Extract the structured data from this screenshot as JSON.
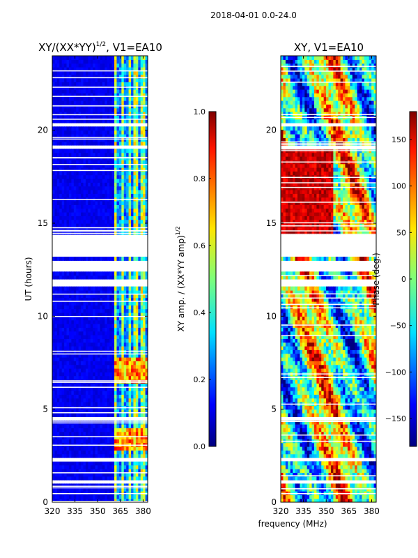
{
  "figure_title": "2018-04-01 0.0-24.0",
  "xlabel": "frequency (MHz)",
  "chart_data": [
    {
      "type": "heatmap",
      "title_base": "XY/(XX*YY)",
      "title_sup": "1/2",
      "title_tail": ", V1=EA10",
      "xlim": [
        320,
        383
      ],
      "ylim": [
        0,
        24
      ],
      "xticks": [
        320,
        335,
        350,
        365,
        380
      ],
      "yticks": [
        0,
        5,
        10,
        15,
        20
      ],
      "ylabel": "UT (hours)",
      "colorbar": {
        "label_base": "XY amp. / (XX*YY amp)",
        "label_sup": "1/2",
        "range": [
          0.0,
          1.0
        ],
        "ticks": [
          "0.0",
          "0.2",
          "0.4",
          "0.6",
          "0.8",
          "1.0"
        ],
        "tick_values": [
          0.0,
          0.2,
          0.4,
          0.6,
          0.8,
          1.0
        ]
      }
    },
    {
      "type": "heatmap",
      "title": "XY, V1=EA10",
      "xlim": [
        320,
        383
      ],
      "ylim": [
        0,
        24
      ],
      "xticks": [
        320,
        335,
        350,
        365,
        380
      ],
      "yticks": [
        0,
        5,
        10,
        15,
        20
      ],
      "colorbar": {
        "label": "Phase (deg.)",
        "range": [
          -180,
          180
        ],
        "ticks": [
          "150",
          "100",
          "50",
          "0",
          "−50",
          "−100",
          "−150"
        ],
        "tick_values": [
          150,
          100,
          50,
          0,
          -50,
          -100,
          -150
        ]
      }
    }
  ],
  "data_gaps_hours": [
    [
      11.6,
      11.9
    ],
    [
      12.4,
      13.0
    ],
    [
      13.3,
      14.3
    ],
    [
      19.1,
      19.3
    ],
    [
      20.2,
      20.4
    ],
    [
      4.4,
      4.55
    ],
    [
      2.3,
      2.45
    ],
    [
      1.0,
      1.1
    ]
  ]
}
